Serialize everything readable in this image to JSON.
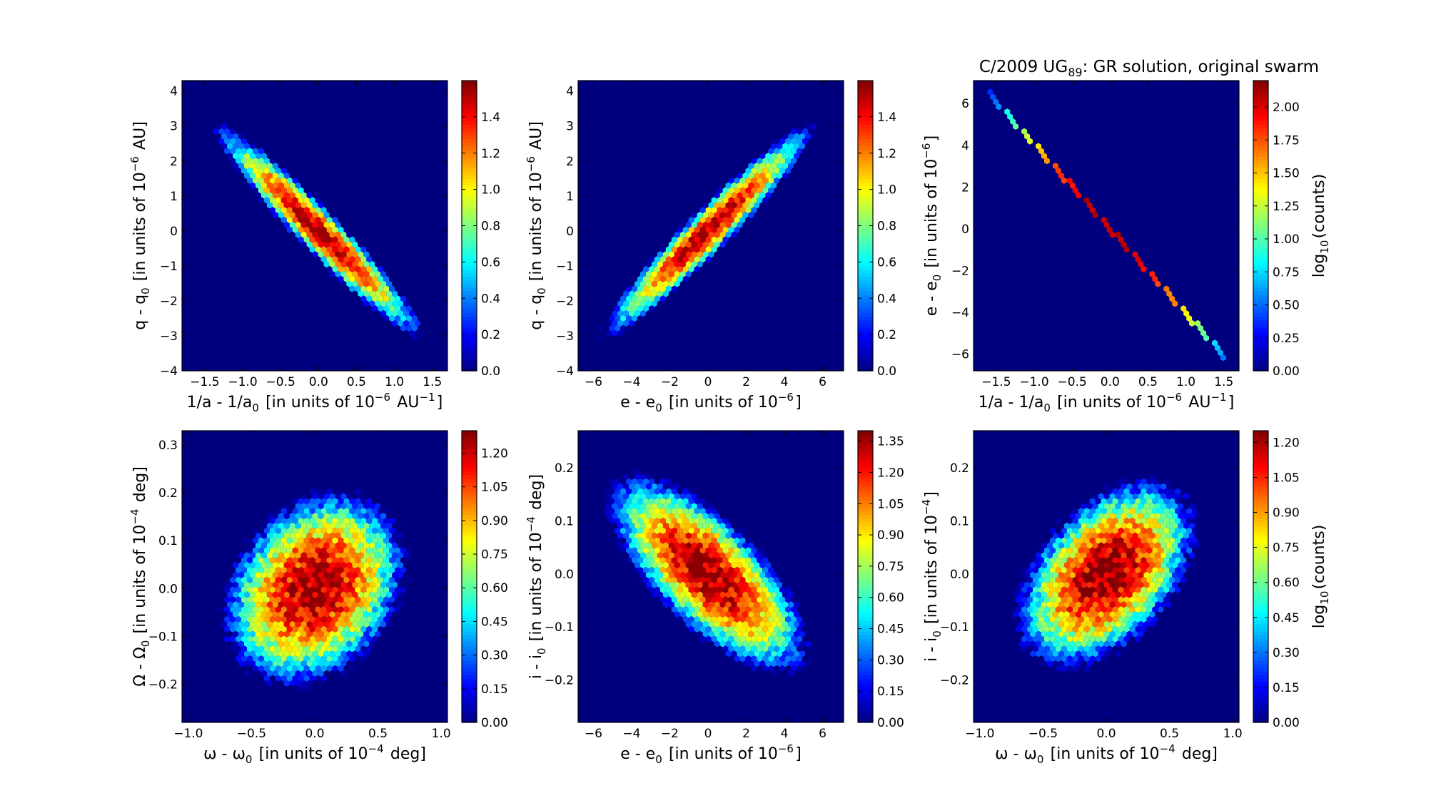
{
  "figure_title": "C/2009 UG89: GR solution, original swarm",
  "colormap_stops": [
    "#00007f",
    "#0000ff",
    "#007fff",
    "#00ffff",
    "#7fff7f",
    "#ffff00",
    "#ff7f00",
    "#ff0000",
    "#7f0000"
  ],
  "background_color": "#00007f",
  "chart_data": [
    {
      "type": "heatmap",
      "subtype": "hexbin",
      "xlabel": "1/a - 1/a0 [in units of 10^-6 AU^-1]",
      "ylabel": "q - q0 [in units of 10^-6 AU]",
      "xlim": [
        -1.8,
        1.7
      ],
      "ylim": [
        -4.0,
        4.3
      ],
      "xticks": [
        -1.5,
        -1.0,
        -0.5,
        0.0,
        0.5,
        1.0,
        1.5
      ],
      "xtick_labels": [
        "−1.5",
        "−1.0",
        "−0.5",
        "0.0",
        "0.5",
        "1.0",
        "1.5"
      ],
      "yticks": [
        -4,
        -3,
        -2,
        -1,
        0,
        1,
        2,
        3,
        4
      ],
      "ytick_labels": [
        "−4",
        "−3",
        "−2",
        "−1",
        "0",
        "1",
        "2",
        "3",
        "4"
      ],
      "distribution": {
        "mean_x": 0.0,
        "mean_y": 0.0,
        "sd_x": 0.52,
        "sd_y": 1.15,
        "correlation": -0.96,
        "peak_log10_counts": 1.55
      },
      "colorbar": {
        "label": "",
        "range": [
          0.0,
          1.6
        ],
        "ticks": [
          0.0,
          0.2,
          0.4,
          0.6,
          0.8,
          1.0,
          1.2,
          1.4
        ],
        "tick_labels": [
          "0.0",
          "0.2",
          "0.4",
          "0.6",
          "0.8",
          "1.0",
          "1.2",
          "1.4"
        ]
      }
    },
    {
      "type": "heatmap",
      "subtype": "hexbin",
      "xlabel": "e - e0 [in units of 10^-6]",
      "ylabel": "q - q0 [in units of 10^-6 AU]",
      "xlim": [
        -6.8,
        7.1
      ],
      "ylim": [
        -4.0,
        4.3
      ],
      "xticks": [
        -6,
        -4,
        -2,
        0,
        2,
        4,
        6
      ],
      "xtick_labels": [
        "−6",
        "−4",
        "−2",
        "0",
        "2",
        "4",
        "6"
      ],
      "yticks": [
        -4,
        -3,
        -2,
        -1,
        0,
        1,
        2,
        3,
        4
      ],
      "ytick_labels": [
        "−4",
        "−3",
        "−2",
        "−1",
        "0",
        "1",
        "2",
        "3",
        "4"
      ],
      "distribution": {
        "mean_x": 0.0,
        "mean_y": 0.0,
        "sd_x": 2.1,
        "sd_y": 1.15,
        "correlation": 0.96,
        "peak_log10_counts": 1.55
      },
      "colorbar": {
        "label": "",
        "range": [
          0.0,
          1.6
        ],
        "ticks": [
          0.0,
          0.2,
          0.4,
          0.6,
          0.8,
          1.0,
          1.2,
          1.4
        ],
        "tick_labels": [
          "0.0",
          "0.2",
          "0.4",
          "0.6",
          "0.8",
          "1.0",
          "1.2",
          "1.4"
        ]
      }
    },
    {
      "type": "heatmap",
      "subtype": "hexbin",
      "xlabel": "1/a - 1/a0 [in units of 10^-6 AU^-1]",
      "ylabel": "e - e0 [in units of 10^-6]",
      "xlim": [
        -1.8,
        1.7
      ],
      "ylim": [
        -6.8,
        7.1
      ],
      "xticks": [
        -1.5,
        -1.0,
        -0.5,
        0.0,
        0.5,
        1.0,
        1.5
      ],
      "xtick_labels": [
        "−1.5",
        "−1.0",
        "−0.5",
        "0.0",
        "0.5",
        "1.0",
        "1.5"
      ],
      "yticks": [
        -6,
        -4,
        -2,
        0,
        2,
        4,
        6
      ],
      "ytick_labels": [
        "−6",
        "−4",
        "−2",
        "0",
        "2",
        "4",
        "6"
      ],
      "distribution": {
        "line_slope": -4.05,
        "x_from": -1.6,
        "x_to": 1.55,
        "peak_log10_counts": 2.2
      },
      "colorbar": {
        "label": "log10(counts)",
        "range": [
          0.0,
          2.2
        ],
        "ticks": [
          0.0,
          0.25,
          0.5,
          0.75,
          1.0,
          1.25,
          1.5,
          1.75,
          2.0
        ],
        "tick_labels": [
          "0.00",
          "0.25",
          "0.50",
          "0.75",
          "1.00",
          "1.25",
          "1.50",
          "1.75",
          "2.00"
        ]
      }
    },
    {
      "type": "heatmap",
      "subtype": "hexbin",
      "xlabel": "ω - ω0 [in units of 10^-4 deg]",
      "ylabel": "Ω - Ω0 [in units of 10^-4 deg]",
      "xlim": [
        -1.05,
        1.05
      ],
      "ylim": [
        -0.28,
        0.33
      ],
      "xticks": [
        -1.0,
        -0.5,
        0.0,
        0.5,
        1.0
      ],
      "xtick_labels": [
        "−1.0",
        "−0.5",
        "0.0",
        "0.5",
        "1.0"
      ],
      "yticks": [
        -0.2,
        -0.1,
        0.0,
        0.1,
        0.2,
        0.3
      ],
      "ytick_labels": [
        "−0.2",
        "−0.1",
        "0.0",
        "0.1",
        "0.2",
        "0.3"
      ],
      "distribution": {
        "mean_x": 0.0,
        "mean_y": 0.0,
        "sd_x": 0.3,
        "sd_y": 0.085,
        "correlation": 0.25,
        "peak_log10_counts": 1.28
      },
      "colorbar": {
        "label": "",
        "range": [
          0.0,
          1.3
        ],
        "ticks": [
          0.0,
          0.15,
          0.3,
          0.45,
          0.6,
          0.75,
          0.9,
          1.05,
          1.2
        ],
        "tick_labels": [
          "0.00",
          "0.15",
          "0.30",
          "0.45",
          "0.60",
          "0.75",
          "0.90",
          "1.05",
          "1.20"
        ]
      }
    },
    {
      "type": "heatmap",
      "subtype": "hexbin",
      "xlabel": "e - e0 [in units of 10^-6]",
      "ylabel": "i - i0 [in units of 10^-4 deg]",
      "xlim": [
        -6.8,
        7.1
      ],
      "ylim": [
        -0.28,
        0.27
      ],
      "xticks": [
        -6,
        -4,
        -2,
        0,
        2,
        4,
        6
      ],
      "xtick_labels": [
        "−6",
        "−4",
        "−2",
        "0",
        "2",
        "4",
        "6"
      ],
      "yticks": [
        -0.2,
        -0.1,
        0.0,
        0.1,
        0.2
      ],
      "ytick_labels": [
        "−0.2",
        "−0.1",
        "0.0",
        "0.1",
        "0.2"
      ],
      "distribution": {
        "mean_x": 0.0,
        "mean_y": 0.0,
        "sd_x": 2.1,
        "sd_y": 0.075,
        "correlation": -0.72,
        "peak_log10_counts": 1.38
      },
      "colorbar": {
        "label": "",
        "range": [
          0.0,
          1.4
        ],
        "ticks": [
          0.0,
          0.15,
          0.3,
          0.45,
          0.6,
          0.75,
          0.9,
          1.05,
          1.2,
          1.35
        ],
        "tick_labels": [
          "0.00",
          "0.15",
          "0.30",
          "0.45",
          "0.60",
          "0.75",
          "0.90",
          "1.05",
          "1.20",
          "1.35"
        ]
      }
    },
    {
      "type": "heatmap",
      "subtype": "hexbin",
      "xlabel": "ω - ω0 [in units of 10^-4 deg]",
      "ylabel": "i - i0 [in units of 10^-4]",
      "xlim": [
        -1.05,
        1.05
      ],
      "ylim": [
        -0.28,
        0.27
      ],
      "xticks": [
        -1.0,
        -0.5,
        0.0,
        0.5,
        1.0
      ],
      "xtick_labels": [
        "−1.0",
        "−0.5",
        "0.0",
        "0.5",
        "1.0"
      ],
      "yticks": [
        -0.2,
        -0.1,
        0.0,
        0.1,
        0.2
      ],
      "ytick_labels": [
        "−0.2",
        "−0.1",
        "0.0",
        "0.1",
        "0.2"
      ],
      "distribution": {
        "mean_x": 0.0,
        "mean_y": 0.0,
        "sd_x": 0.3,
        "sd_y": 0.075,
        "correlation": 0.45,
        "peak_log10_counts": 1.25
      },
      "colorbar": {
        "label": "log10(counts)",
        "range": [
          0.0,
          1.25
        ],
        "ticks": [
          0.0,
          0.15,
          0.3,
          0.45,
          0.6,
          0.75,
          0.9,
          1.05,
          1.2
        ],
        "tick_labels": [
          "0.00",
          "0.15",
          "0.30",
          "0.45",
          "0.60",
          "0.75",
          "0.90",
          "1.05",
          "1.20"
        ]
      }
    }
  ]
}
